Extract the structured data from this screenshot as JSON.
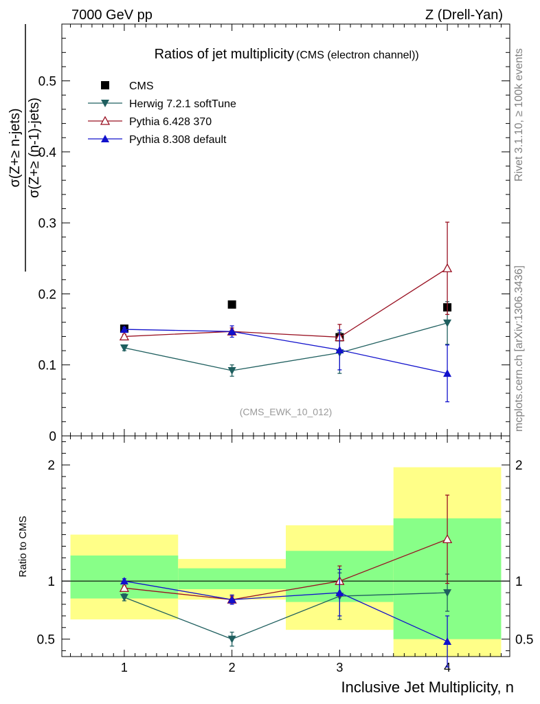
{
  "header": {
    "left": "7000 GeV pp",
    "right": "Z (Drell-Yan)"
  },
  "side_labels": {
    "rivet": "Rivet 3.1.10, ≥ 100k events",
    "mcplots": "mcplots.cern.ch [arXiv:1306.3436]"
  },
  "chart_data": [
    {
      "type": "line",
      "title": "Ratios of jet multiplicity",
      "subtitle": "(CMS (electron channel))",
      "analysis_tag": "(CMS_EWK_10_012)",
      "ylabel_numerator": "σ(Z+≥ n-jets)",
      "ylabel_denominator": "σ(Z+≥ (n-1)-jets)",
      "ylim": [
        0,
        0.58
      ],
      "yticks": [
        "0",
        "0.1",
        "0.2",
        "0.3",
        "0.4",
        "0.5"
      ],
      "legend_position": "top-left",
      "x": [
        1,
        2,
        3,
        4
      ],
      "series": [
        {
          "name": "CMS",
          "color": "#000000",
          "marker": "square",
          "values": [
            0.151,
            0.185,
            0.139,
            0.181
          ]
        },
        {
          "name": "Herwig 7.2.1 softTune",
          "color": "#1f5f5f",
          "marker": "triangle-down",
          "values": [
            0.124,
            0.092,
            0.117,
            0.159
          ],
          "err": [
            0.004,
            0.008,
            0.029,
            0.03
          ]
        },
        {
          "name": "Pythia 6.428 370",
          "color": "#991122",
          "marker": "triangle-up-open",
          "values": [
            0.14,
            0.147,
            0.139,
            0.236
          ],
          "err": [
            0.003,
            0.005,
            0.018,
            0.065
          ]
        },
        {
          "name": "Pythia 8.308 default",
          "color": "#1111cc",
          "marker": "triangle-up",
          "values": [
            0.15,
            0.147,
            0.121,
            0.088
          ],
          "err": [
            0.003,
            0.008,
            0.028,
            0.04
          ]
        }
      ]
    },
    {
      "type": "line",
      "ylabel": "Ratio to CMS",
      "xlabel": "Inclusive Jet Multiplicity, n",
      "ylim": [
        0.35,
        2.25
      ],
      "yticks": [
        "0.5",
        "1",
        "2"
      ],
      "xticks": [
        "1",
        "2",
        "3",
        "4"
      ],
      "xlim": [
        0.42,
        4.58
      ],
      "x": [
        1,
        2,
        3,
        4
      ],
      "bands": [
        {
          "x0": 0.5,
          "x1": 1.5,
          "inner": [
            0.85,
            1.22
          ],
          "outer": [
            0.67,
            1.4
          ]
        },
        {
          "x0": 1.5,
          "x1": 2.5,
          "inner": [
            0.93,
            1.11
          ],
          "outer": [
            0.84,
            1.19
          ]
        },
        {
          "x0": 2.5,
          "x1": 3.5,
          "inner": [
            0.82,
            1.26
          ],
          "outer": [
            0.58,
            1.48
          ]
        },
        {
          "x0": 3.5,
          "x1": 4.5,
          "inner": [
            0.5,
            1.54
          ],
          "outer": [
            0.3,
            1.98
          ]
        }
      ],
      "series": [
        {
          "name": "Herwig 7.2.1 softTune",
          "color": "#1f5f5f",
          "marker": "triangle-down",
          "values": [
            0.86,
            0.5,
            0.87,
            0.9
          ],
          "err": [
            0.03,
            0.06,
            0.2,
            0.16
          ]
        },
        {
          "name": "Pythia 6.428 370",
          "color": "#991122",
          "marker": "triangle-up-open",
          "values": [
            0.94,
            0.84,
            1.0,
            1.36
          ],
          "err": [
            0.02,
            0.03,
            0.13,
            0.38
          ]
        },
        {
          "name": "Pythia 8.308 default",
          "color": "#1111cc",
          "marker": "triangle-up",
          "values": [
            1.0,
            0.84,
            0.9,
            0.48
          ],
          "err": [
            0.02,
            0.04,
            0.2,
            0.22
          ]
        }
      ]
    }
  ]
}
